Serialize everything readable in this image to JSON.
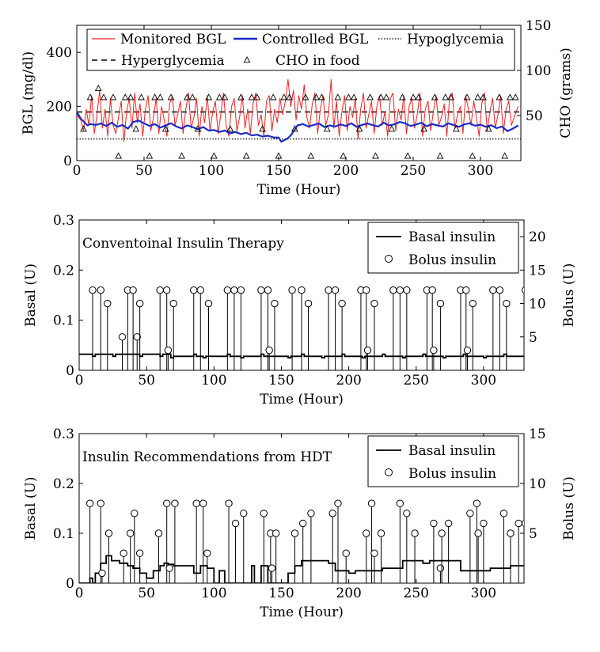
{
  "chart_data": [
    {
      "type": "line",
      "xlabel": "Time (Hour)",
      "ylabel": "BGL (mg/dl)",
      "ylabel_right": "CHO (grams)",
      "xlim": [
        0,
        330
      ],
      "ylim": [
        0,
        500
      ],
      "ylim_right": [
        0,
        150
      ],
      "xticks": [
        "0",
        "50",
        "100",
        "150",
        "200",
        "250",
        "300"
      ],
      "yticks": [
        "0",
        "200",
        "400"
      ],
      "yticks_right": [
        "50",
        "100",
        "150"
      ],
      "legend_position": "top",
      "legend": {
        "monitored": "Monitored BGL",
        "controlled": "Controlled BGL",
        "hypo": "Hypoglycemia",
        "hyper": "Hyperglycemia",
        "cho": "CHO in food"
      },
      "thresholds": {
        "hypo": 80,
        "hyper": 180
      },
      "colors": {
        "monitored": "#ee2222",
        "controlled": "#1c2bc4",
        "black": "#000000"
      },
      "series": [
        {
          "name": "Monitored BGL",
          "x": [
            0,
            3,
            5,
            7,
            9,
            11,
            13,
            15,
            17,
            19,
            21,
            23,
            25,
            27,
            29,
            31,
            33,
            35,
            37,
            39,
            41,
            43,
            45,
            47,
            49,
            51,
            53,
            55,
            57,
            59,
            61,
            63,
            65,
            67,
            69,
            71,
            73,
            75,
            77,
            79,
            81,
            83,
            85,
            87,
            89,
            91,
            93,
            95,
            97,
            99,
            101,
            103,
            105,
            107,
            109,
            111,
            113,
            115,
            117,
            119,
            121,
            123,
            125,
            127,
            129,
            131,
            133,
            135,
            137,
            139,
            141,
            143,
            145,
            147,
            149,
            151,
            153,
            155,
            157,
            159,
            161,
            163,
            165,
            167,
            169,
            171,
            173,
            175,
            177,
            179,
            181,
            183,
            185,
            187,
            189,
            191,
            193,
            195,
            197,
            199,
            201,
            203,
            205,
            207,
            209,
            211,
            213,
            215,
            217,
            219,
            221,
            223,
            225,
            227,
            229,
            231,
            233,
            235,
            237,
            239,
            241,
            243,
            245,
            247,
            249,
            251,
            253,
            255,
            257,
            259,
            261,
            263,
            265,
            267,
            269,
            271,
            273,
            275,
            277,
            279,
            281,
            283,
            285,
            287,
            289,
            291,
            293,
            295,
            297,
            299,
            301,
            303,
            305,
            307,
            309,
            311,
            313,
            315,
            317,
            319,
            321,
            323,
            325,
            328
          ],
          "values": [
            170,
            150,
            110,
            190,
            130,
            240,
            100,
            170,
            260,
            120,
            190,
            90,
            230,
            130,
            100,
            160,
            220,
            70,
            180,
            230,
            120,
            250,
            140,
            210,
            90,
            190,
            240,
            110,
            160,
            230,
            100,
            200,
            150,
            90,
            210,
            240,
            130,
            170,
            220,
            100,
            190,
            250,
            120,
            160,
            230,
            90,
            200,
            140,
            240,
            110,
            180,
            220,
            100,
            170,
            250,
            130,
            90,
            200,
            230,
            110,
            160,
            240,
            120,
            190,
            100,
            210,
            250,
            130,
            170,
            90,
            220,
            240,
            110,
            190,
            140,
            230,
            170,
            220,
            300,
            200,
            260,
            150,
            240,
            190,
            280,
            160,
            120,
            210,
            250,
            100,
            190,
            240,
            130,
            170,
            300,
            120,
            220,
            90,
            180,
            240,
            110,
            200,
            160,
            230,
            80,
            190,
            250,
            120,
            170,
            220,
            100,
            200,
            240,
            130,
            180,
            90,
            230,
            250,
            110,
            190,
            150,
            240,
            100,
            200,
            230,
            120,
            170,
            250,
            90,
            190,
            220,
            110,
            180,
            240,
            130,
            160,
            210,
            90,
            230,
            250,
            120,
            170,
            200,
            100,
            240,
            190,
            130,
            220,
            160,
            90,
            210,
            250,
            110,
            180,
            230,
            120,
            170,
            240,
            100,
            190,
            220,
            130,
            160,
            200
          ]
        },
        {
          "name": "Controlled BGL",
          "x": [
            0,
            3,
            6,
            8,
            10,
            14,
            18,
            22,
            26,
            30,
            34,
            38,
            42,
            46,
            50,
            54,
            58,
            62,
            66,
            70,
            74,
            78,
            82,
            86,
            90,
            94,
            98,
            102,
            106,
            110,
            114,
            118,
            122,
            126,
            130,
            134,
            138,
            142,
            146,
            150,
            152,
            154,
            156,
            158,
            160,
            164,
            168,
            172,
            176,
            180,
            184,
            188,
            192,
            196,
            200,
            204,
            208,
            212,
            216,
            220,
            224,
            228,
            232,
            236,
            240,
            244,
            248,
            252,
            256,
            260,
            264,
            268,
            272,
            276,
            280,
            284,
            288,
            292,
            296,
            300,
            304,
            308,
            312,
            316,
            320,
            324,
            328
          ],
          "values": [
            180,
            155,
            140,
            130,
            135,
            132,
            137,
            128,
            140,
            125,
            132,
            118,
            143,
            148,
            138,
            128,
            135,
            122,
            130,
            138,
            126,
            119,
            130,
            124,
            116,
            124,
            111,
            113,
            106,
            111,
            101,
            106,
            98,
            103,
            93,
            96,
            89,
            92,
            86,
            85,
            70,
            75,
            80,
            88,
            100,
            130,
            135,
            126,
            132,
            137,
            124,
            130,
            126,
            134,
            128,
            138,
            125,
            132,
            137,
            131,
            126,
            140,
            130,
            134,
            143,
            138,
            128,
            133,
            140,
            127,
            135,
            130,
            126,
            138,
            132,
            125,
            134,
            138,
            129,
            133,
            125,
            131,
            120,
            126,
            109,
            118,
            130
          ]
        }
      ],
      "cho_x": [
        5,
        10,
        16,
        20,
        27,
        31,
        36,
        40,
        44,
        48,
        54,
        58,
        62,
        66,
        70,
        78,
        82,
        86,
        90,
        98,
        102,
        106,
        110,
        114,
        122,
        126,
        130,
        134,
        138,
        146,
        150,
        154,
        158,
        162,
        170,
        174,
        178,
        182,
        186,
        194,
        198,
        202,
        206,
        210,
        218,
        222,
        226,
        230,
        234,
        242,
        246,
        250,
        254,
        258,
        266,
        270,
        274,
        278,
        282,
        290,
        294,
        298,
        302,
        306,
        314,
        318,
        322,
        326
      ],
      "cho_values": [
        35,
        70,
        80,
        70,
        70,
        5,
        70,
        70,
        35,
        70,
        5,
        70,
        70,
        35,
        70,
        5,
        70,
        70,
        35,
        70,
        5,
        70,
        70,
        35,
        70,
        5,
        70,
        70,
        35,
        70,
        5,
        70,
        70,
        35,
        70,
        5,
        70,
        70,
        35,
        70,
        5,
        70,
        70,
        35,
        70,
        5,
        70,
        70,
        35,
        70,
        5,
        70,
        70,
        35,
        70,
        5,
        70,
        70,
        35,
        70,
        5,
        70,
        70,
        35,
        70,
        5,
        70,
        70
      ]
    },
    {
      "type": "line",
      "title": "Conventoinal Insulin Therapy",
      "xlabel": "Time (Hour)",
      "ylabel": "Basal (U)",
      "ylabel_right": "Bolus (U)",
      "xlim": [
        0,
        330
      ],
      "ylim": [
        0,
        0.3
      ],
      "ylim_right": [
        0,
        22.5
      ],
      "xticks": [
        "0",
        "50",
        "100",
        "150",
        "200",
        "250",
        "300"
      ],
      "yticks": [
        "0",
        "0.1",
        "0.2",
        "0.3"
      ],
      "yticks_right": [
        "5",
        "10",
        "15",
        "20"
      ],
      "legend_position": "top-right",
      "legend": {
        "basal": "Basal insulin",
        "bolus": "Bolus insulin"
      },
      "basal_x": [
        0,
        10,
        12,
        25,
        27,
        45,
        47,
        60,
        62,
        68,
        70,
        85,
        87,
        92,
        94,
        110,
        112,
        120,
        122,
        135,
        137,
        155,
        157,
        165,
        167,
        180,
        182,
        195,
        197,
        210,
        212,
        225,
        227,
        240,
        242,
        255,
        257,
        270,
        272,
        285,
        287,
        300,
        302,
        315,
        317,
        330
      ],
      "basal_values": [
        0.032,
        0.028,
        0.032,
        0.028,
        0.032,
        0.028,
        0.032,
        0.028,
        0.032,
        0.025,
        0.028,
        0.032,
        0.028,
        0.025,
        0.028,
        0.032,
        0.028,
        0.025,
        0.028,
        0.032,
        0.028,
        0.025,
        0.028,
        0.032,
        0.028,
        0.025,
        0.028,
        0.032,
        0.028,
        0.025,
        0.028,
        0.032,
        0.028,
        0.025,
        0.028,
        0.032,
        0.028,
        0.025,
        0.028,
        0.032,
        0.028,
        0.025,
        0.028,
        0.032,
        0.028,
        0.028
      ],
      "bolus_x": [
        10,
        16,
        21,
        32,
        36,
        40,
        43,
        45,
        60,
        65,
        66,
        70,
        85,
        90,
        96,
        110,
        115,
        120,
        135,
        140,
        141,
        145,
        158,
        165,
        170,
        185,
        190,
        195,
        209,
        213,
        214,
        219,
        233,
        238,
        243,
        258,
        262,
        263,
        268,
        283,
        287,
        288,
        292,
        307,
        312,
        317,
        331,
        336
      ],
      "bolus_values": [
        12,
        12,
        10,
        5,
        12,
        12,
        5,
        10,
        12,
        12,
        3,
        10,
        12,
        12,
        10,
        12,
        12,
        12,
        12,
        12,
        3,
        10,
        12,
        12,
        10,
        12,
        12,
        10,
        12,
        12,
        3,
        10,
        12,
        12,
        12,
        12,
        12,
        3,
        10,
        12,
        12,
        3,
        10,
        12,
        12,
        10,
        12,
        12
      ]
    },
    {
      "type": "line",
      "title": "Insulin Recommendations from HDT",
      "xlabel": "Time (Hour)",
      "ylabel": "Basal (U)",
      "ylabel_right": "Bolus (U)",
      "xlim": [
        0,
        330
      ],
      "ylim": [
        0,
        0.3
      ],
      "ylim_right": [
        0,
        15
      ],
      "xticks": [
        "0",
        "50",
        "100",
        "150",
        "200",
        "250",
        "300"
      ],
      "yticks": [
        "0",
        "0.1",
        "0.2",
        "0.3"
      ],
      "yticks_right": [
        "5",
        "10",
        "15"
      ],
      "legend_position": "top-right",
      "legend": {
        "basal": "Basal insulin",
        "bolus": "Bolus insulin"
      },
      "basal_x": [
        0,
        8,
        10,
        12,
        16,
        20,
        24,
        30,
        36,
        40,
        45,
        50,
        55,
        60,
        63,
        66,
        70,
        85,
        90,
        95,
        100,
        104,
        108,
        110,
        128,
        130,
        135,
        140,
        155,
        160,
        165,
        180,
        185,
        190,
        200,
        205,
        210,
        225,
        235,
        240,
        250,
        255,
        260,
        270,
        280,
        283,
        300,
        305,
        320,
        330
      ],
      "basal_values": [
        0.0,
        0.01,
        0.0,
        0.02,
        0.04,
        0.055,
        0.045,
        0.04,
        0.035,
        0.03,
        0.02,
        0.01,
        0.025,
        0.035,
        0.04,
        0.038,
        0.035,
        0.02,
        0.035,
        0.03,
        0.0,
        0.025,
        0.0,
        0.0,
        0.035,
        0.0,
        0.035,
        0.0,
        0.02,
        0.035,
        0.045,
        0.045,
        0.04,
        0.025,
        0.02,
        0.025,
        0.025,
        0.03,
        0.03,
        0.045,
        0.045,
        0.04,
        0.045,
        0.045,
        0.045,
        0.025,
        0.025,
        0.03,
        0.035,
        0.035
      ],
      "bolus_x": [
        8,
        16,
        17,
        22,
        33,
        38,
        41,
        45,
        59,
        65,
        67,
        71,
        87,
        92,
        95,
        111,
        116,
        122,
        137,
        142,
        143,
        146,
        160,
        166,
        172,
        188,
        192,
        198,
        213,
        217,
        219,
        224,
        238,
        243,
        249,
        263,
        268,
        269,
        274,
        290,
        295,
        296,
        300,
        315,
        320,
        326,
        331,
        336
      ],
      "bolus_values": [
        8,
        8,
        1,
        5,
        3,
        5,
        7,
        3,
        5,
        8,
        1.5,
        8,
        8,
        8,
        3,
        8,
        6,
        7,
        7,
        5,
        1.5,
        5,
        5,
        6,
        7,
        7,
        8,
        3,
        5,
        8,
        3,
        5,
        8,
        7,
        5,
        6,
        1.5,
        5,
        6,
        7,
        8,
        5,
        6,
        7,
        5,
        6,
        6,
        6
      ]
    }
  ]
}
